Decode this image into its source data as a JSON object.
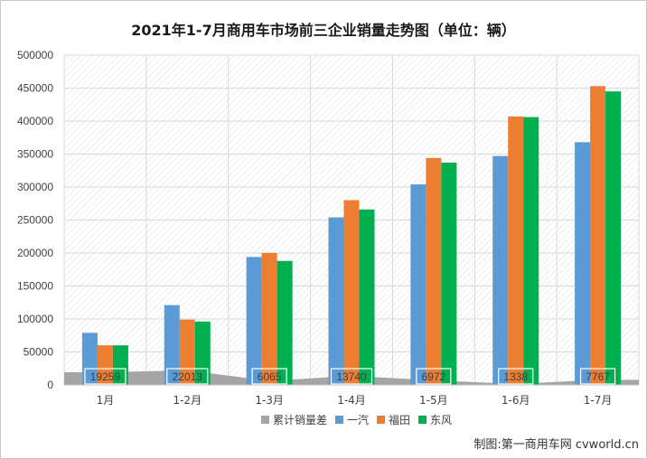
{
  "chart_data": {
    "type": "bar",
    "title": "2021年1-7月商用车市场前三企业销量走势图（单位：辆）",
    "categories": [
      "1月",
      "1-2月",
      "1-3月",
      "1-4月",
      "1-5月",
      "1-6月",
      "1-7月"
    ],
    "ylim": [
      0,
      500000
    ],
    "yticks": [
      "0",
      "50000",
      "100000",
      "150000",
      "200000",
      "250000",
      "300000",
      "350000",
      "400000",
      "450000",
      "500000"
    ],
    "area_series": {
      "name": "累计销量差",
      "color": "#a5a5a5",
      "values": [
        19259,
        22013,
        6065,
        13740,
        6972,
        1338,
        7767
      ],
      "labels": [
        "19259",
        "22013",
        "6065",
        "13740",
        "6972",
        "1338",
        "7767"
      ]
    },
    "series": [
      {
        "name": "一汽",
        "color": "#5b9bd5",
        "values": [
          79000,
          121000,
          194000,
          254000,
          304000,
          347000,
          368000
        ]
      },
      {
        "name": "福田",
        "color": "#ed7d31",
        "values": [
          60000,
          99000,
          200000,
          280000,
          344000,
          407000,
          453000
        ]
      },
      {
        "name": "东风",
        "color": "#00b050",
        "values": [
          60000,
          96000,
          188000,
          266000,
          337000,
          406000,
          445000
        ]
      }
    ],
    "legend_position": "bottom",
    "grid": true
  },
  "credit": "制图:第一商用车网 cvworld.cn"
}
